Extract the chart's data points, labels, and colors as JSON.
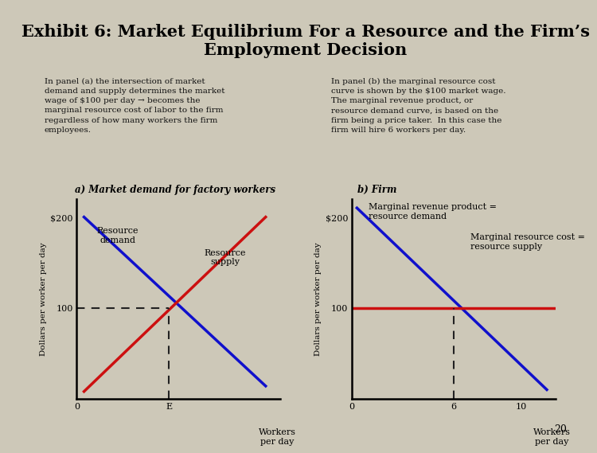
{
  "title": "Exhibit 6: Market Equilibrium For a Resource and the Firm’s\nEmployment Decision",
  "title_fontsize": 15,
  "bg_color": "#cdc8b8",
  "text_box_color": "#f0edd8",
  "swatch_color": "#b8b860",
  "left_strip_color": "#9e96b8",
  "panel_a_title": "a) Market demand for factory workers",
  "panel_b_title": "b) Firm",
  "panel_a_text": "In panel (a) the intersection of market\ndemand and supply determines the market\nwage of $100 per day → becomes the\nmarginal resource cost of labor to the firm\nregardless of how many workers the firm\nemployees.",
  "panel_b_text": "In panel (b) the marginal resource cost\ncurve is shown by the $100 market wage.\nThe marginal revenue product, or\nresource demand curve, is based on the\nfirm being a price taker.  In this case the\nfirm will hire 6 workers per day.",
  "ylabel": "Dollars per worker per day",
  "demand_color": "#1010cc",
  "supply_color": "#cc1010",
  "mrp_color": "#1010cc",
  "mrc_color": "#cc1010",
  "dashed_color": "#222222",
  "text_color": "#111111",
  "page_num": "20",
  "resource_demand_label": "Resource\ndemand",
  "resource_supply_label": "Resource\nsupply",
  "mrp_label": "Marginal revenue product =\nresource demand",
  "mrc_label": "Marginal resource cost =\nresource supply"
}
